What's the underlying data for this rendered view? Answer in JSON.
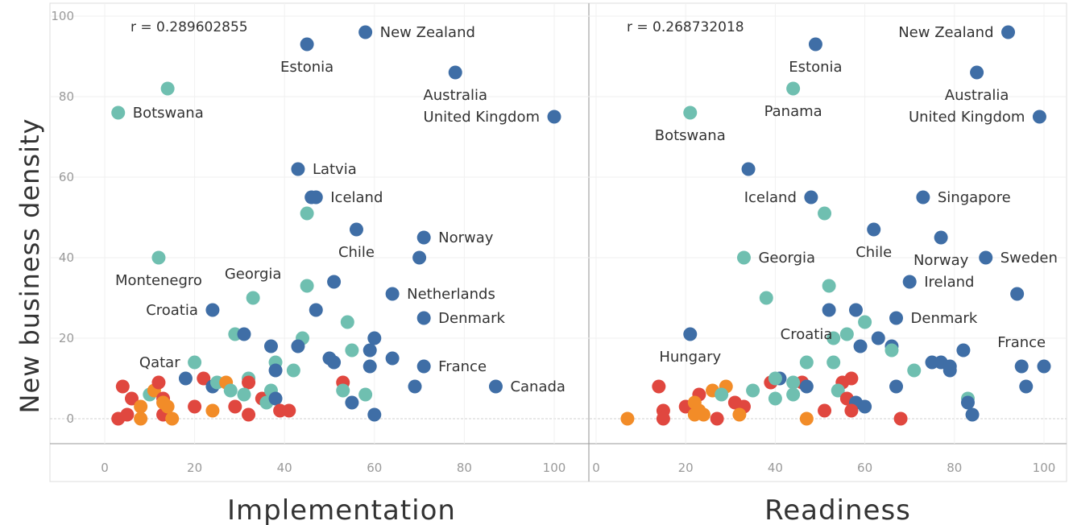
{
  "chart_data": {
    "type": "scatter",
    "ylabel": "New business density",
    "yticks": [
      0,
      20,
      40,
      60,
      80,
      100
    ],
    "ylim": [
      -7,
      102
    ],
    "xticks": [
      0,
      20,
      40,
      60,
      80,
      100
    ],
    "xlim": [
      -1,
      106
    ],
    "colors": {
      "blue": "#3f6ea6",
      "teal": "#6fbfb0",
      "red": "#e0473f",
      "orange": "#f28c28"
    },
    "panels": [
      {
        "xlabel": "Implementation",
        "annotation": "r = 0.289602855",
        "points": [
          {
            "x": 45,
            "y": 93,
            "c": "blue",
            "label": "Estonia",
            "lpos": "below"
          },
          {
            "x": 58,
            "y": 96,
            "c": "blue",
            "label": "New Zealand",
            "lpos": "right"
          },
          {
            "x": 78,
            "y": 86,
            "c": "blue",
            "label": "Australia",
            "lpos": "below"
          },
          {
            "x": 100,
            "y": 75,
            "c": "blue",
            "label": "United Kingdom",
            "lpos": "left"
          },
          {
            "x": 3,
            "y": 76,
            "c": "teal",
            "label": "Botswana",
            "lpos": "right"
          },
          {
            "x": 14,
            "y": 82,
            "c": "teal"
          },
          {
            "x": 43,
            "y": 62,
            "c": "blue",
            "label": "Latvia",
            "lpos": "right"
          },
          {
            "x": 47,
            "y": 55,
            "c": "blue",
            "label": "Iceland",
            "lpos": "right"
          },
          {
            "x": 46,
            "y": 55,
            "c": "blue"
          },
          {
            "x": 45,
            "y": 51,
            "c": "teal"
          },
          {
            "x": 56,
            "y": 47,
            "c": "blue",
            "label": "Chile",
            "lpos": "below"
          },
          {
            "x": 71,
            "y": 45,
            "c": "blue",
            "label": "Norway",
            "lpos": "right"
          },
          {
            "x": 70,
            "y": 40,
            "c": "blue"
          },
          {
            "x": 12,
            "y": 40,
            "c": "teal",
            "label": "Montenegro",
            "lpos": "below"
          },
          {
            "x": 45,
            "y": 33,
            "c": "teal"
          },
          {
            "x": 33,
            "y": 30,
            "c": "teal",
            "label": "Georgia",
            "lpos": "above"
          },
          {
            "x": 51,
            "y": 34,
            "c": "blue"
          },
          {
            "x": 47,
            "y": 27,
            "c": "blue"
          },
          {
            "x": 64,
            "y": 31,
            "c": "blue",
            "label": "Netherlands",
            "lpos": "right"
          },
          {
            "x": 71,
            "y": 25,
            "c": "blue",
            "label": "Denmark",
            "lpos": "right"
          },
          {
            "x": 24,
            "y": 27,
            "c": "blue",
            "label": "Croatia",
            "lpos": "left"
          },
          {
            "x": 54,
            "y": 24,
            "c": "teal"
          },
          {
            "x": 29,
            "y": 21,
            "c": "teal"
          },
          {
            "x": 31,
            "y": 21,
            "c": "blue"
          },
          {
            "x": 44,
            "y": 20,
            "c": "teal"
          },
          {
            "x": 60,
            "y": 20,
            "c": "blue"
          },
          {
            "x": 37,
            "y": 18,
            "c": "blue"
          },
          {
            "x": 43,
            "y": 18,
            "c": "blue"
          },
          {
            "x": 59,
            "y": 17,
            "c": "blue"
          },
          {
            "x": 55,
            "y": 17,
            "c": "teal"
          },
          {
            "x": 50,
            "y": 15,
            "c": "blue"
          },
          {
            "x": 51,
            "y": 14,
            "c": "blue"
          },
          {
            "x": 38,
            "y": 14,
            "c": "teal"
          },
          {
            "x": 64,
            "y": 15,
            "c": "blue"
          },
          {
            "x": 59,
            "y": 13,
            "c": "blue"
          },
          {
            "x": 71,
            "y": 13,
            "c": "blue",
            "label": "France",
            "lpos": "right"
          },
          {
            "x": 38,
            "y": 12,
            "c": "blue"
          },
          {
            "x": 42,
            "y": 12,
            "c": "teal"
          },
          {
            "x": 20,
            "y": 14,
            "c": "teal",
            "label": "Qatar",
            "lpos": "left"
          },
          {
            "x": 18,
            "y": 10,
            "c": "blue"
          },
          {
            "x": 22,
            "y": 10,
            "c": "red"
          },
          {
            "x": 24,
            "y": 8,
            "c": "blue"
          },
          {
            "x": 25,
            "y": 9,
            "c": "teal"
          },
          {
            "x": 27,
            "y": 9,
            "c": "orange"
          },
          {
            "x": 28,
            "y": 7,
            "c": "teal"
          },
          {
            "x": 32,
            "y": 10,
            "c": "teal"
          },
          {
            "x": 32,
            "y": 9,
            "c": "red"
          },
          {
            "x": 31,
            "y": 6,
            "c": "teal"
          },
          {
            "x": 35,
            "y": 5,
            "c": "red"
          },
          {
            "x": 36,
            "y": 4,
            "c": "teal"
          },
          {
            "x": 37,
            "y": 7,
            "c": "teal"
          },
          {
            "x": 38,
            "y": 5,
            "c": "blue"
          },
          {
            "x": 39,
            "y": 2,
            "c": "red"
          },
          {
            "x": 41,
            "y": 2,
            "c": "red"
          },
          {
            "x": 53,
            "y": 9,
            "c": "red"
          },
          {
            "x": 53,
            "y": 7,
            "c": "teal"
          },
          {
            "x": 55,
            "y": 4,
            "c": "blue"
          },
          {
            "x": 58,
            "y": 6,
            "c": "teal"
          },
          {
            "x": 60,
            "y": 1,
            "c": "blue"
          },
          {
            "x": 69,
            "y": 8,
            "c": "blue"
          },
          {
            "x": 87,
            "y": 8,
            "c": "blue",
            "label": "Canada",
            "lpos": "right"
          },
          {
            "x": 3,
            "y": 0,
            "c": "red"
          },
          {
            "x": 5,
            "y": 1,
            "c": "red"
          },
          {
            "x": 4,
            "y": 8,
            "c": "red"
          },
          {
            "x": 6,
            "y": 5,
            "c": "red"
          },
          {
            "x": 8,
            "y": 3,
            "c": "orange"
          },
          {
            "x": 8,
            "y": 0,
            "c": "orange"
          },
          {
            "x": 10,
            "y": 6,
            "c": "teal"
          },
          {
            "x": 11,
            "y": 7,
            "c": "orange"
          },
          {
            "x": 12,
            "y": 9,
            "c": "red"
          },
          {
            "x": 13,
            "y": 5,
            "c": "red"
          },
          {
            "x": 13,
            "y": 1,
            "c": "red"
          },
          {
            "x": 13,
            "y": 4,
            "c": "orange"
          },
          {
            "x": 14,
            "y": 3,
            "c": "orange"
          },
          {
            "x": 15,
            "y": 0,
            "c": "orange"
          },
          {
            "x": 20,
            "y": 3,
            "c": "red"
          },
          {
            "x": 24,
            "y": 2,
            "c": "orange"
          },
          {
            "x": 29,
            "y": 3,
            "c": "red"
          },
          {
            "x": 32,
            "y": 1,
            "c": "red"
          }
        ]
      },
      {
        "xlabel": "Readiness",
        "annotation": "r = 0.268732018",
        "points": [
          {
            "x": 49,
            "y": 93,
            "c": "blue",
            "label": "Estonia",
            "lpos": "below"
          },
          {
            "x": 92,
            "y": 96,
            "c": "blue",
            "label": "New Zealand",
            "lpos": "left"
          },
          {
            "x": 85,
            "y": 86,
            "c": "blue",
            "label": "Australia",
            "lpos": "below"
          },
          {
            "x": 99,
            "y": 75,
            "c": "blue",
            "label": "United Kingdom",
            "lpos": "left"
          },
          {
            "x": 21,
            "y": 76,
            "c": "teal",
            "label": "Botswana",
            "lpos": "below"
          },
          {
            "x": 44,
            "y": 82,
            "c": "teal",
            "label": "Panama",
            "lpos": "below"
          },
          {
            "x": 34,
            "y": 62,
            "c": "blue"
          },
          {
            "x": 48,
            "y": 55,
            "c": "blue",
            "label": "Iceland",
            "lpos": "left"
          },
          {
            "x": 51,
            "y": 51,
            "c": "teal"
          },
          {
            "x": 73,
            "y": 55,
            "c": "blue",
            "label": "Singapore",
            "lpos": "right"
          },
          {
            "x": 62,
            "y": 47,
            "c": "blue",
            "label": "Chile",
            "lpos": "below"
          },
          {
            "x": 77,
            "y": 45,
            "c": "blue",
            "label": "Norway",
            "lpos": "below"
          },
          {
            "x": 87,
            "y": 40,
            "c": "blue",
            "label": "Sweden",
            "lpos": "right"
          },
          {
            "x": 33,
            "y": 40,
            "c": "teal",
            "label": "Georgia",
            "lpos": "right"
          },
          {
            "x": 52,
            "y": 33,
            "c": "teal"
          },
          {
            "x": 70,
            "y": 34,
            "c": "blue",
            "label": "Ireland",
            "lpos": "right"
          },
          {
            "x": 38,
            "y": 30,
            "c": "teal"
          },
          {
            "x": 52,
            "y": 27,
            "c": "blue"
          },
          {
            "x": 58,
            "y": 27,
            "c": "blue"
          },
          {
            "x": 67,
            "y": 25,
            "c": "blue",
            "label": "Denmark",
            "lpos": "right"
          },
          {
            "x": 94,
            "y": 31,
            "c": "blue"
          },
          {
            "x": 60,
            "y": 24,
            "c": "teal"
          },
          {
            "x": 21,
            "y": 21,
            "c": "blue",
            "label": "Hungary",
            "lpos": "below"
          },
          {
            "x": 56,
            "y": 21,
            "c": "teal",
            "label": "Croatia",
            "lpos": "left"
          },
          {
            "x": 53,
            "y": 20,
            "c": "teal"
          },
          {
            "x": 63,
            "y": 20,
            "c": "blue"
          },
          {
            "x": 59,
            "y": 18,
            "c": "blue"
          },
          {
            "x": 66,
            "y": 18,
            "c": "blue"
          },
          {
            "x": 66,
            "y": 17,
            "c": "teal"
          },
          {
            "x": 82,
            "y": 17,
            "c": "blue"
          },
          {
            "x": 75,
            "y": 14,
            "c": "blue"
          },
          {
            "x": 77,
            "y": 14,
            "c": "blue"
          },
          {
            "x": 79,
            "y": 13,
            "c": "blue"
          },
          {
            "x": 79,
            "y": 12,
            "c": "blue"
          },
          {
            "x": 95,
            "y": 13,
            "c": "blue",
            "label": "France",
            "lpos": "above"
          },
          {
            "x": 100,
            "y": 13,
            "c": "blue"
          },
          {
            "x": 47,
            "y": 14,
            "c": "teal"
          },
          {
            "x": 53,
            "y": 14,
            "c": "teal"
          },
          {
            "x": 71,
            "y": 12,
            "c": "teal"
          },
          {
            "x": 57,
            "y": 10,
            "c": "red"
          },
          {
            "x": 55,
            "y": 9,
            "c": "red"
          },
          {
            "x": 46,
            "y": 9,
            "c": "red"
          },
          {
            "x": 44,
            "y": 9,
            "c": "teal"
          },
          {
            "x": 41,
            "y": 10,
            "c": "blue"
          },
          {
            "x": 39,
            "y": 9,
            "c": "red"
          },
          {
            "x": 40,
            "y": 10,
            "c": "teal"
          },
          {
            "x": 47,
            "y": 8,
            "c": "blue"
          },
          {
            "x": 67,
            "y": 8,
            "c": "blue"
          },
          {
            "x": 96,
            "y": 8,
            "c": "blue"
          },
          {
            "x": 29,
            "y": 8,
            "c": "orange"
          },
          {
            "x": 26,
            "y": 7,
            "c": "orange"
          },
          {
            "x": 28,
            "y": 6,
            "c": "teal"
          },
          {
            "x": 23,
            "y": 6,
            "c": "red"
          },
          {
            "x": 14,
            "y": 8,
            "c": "red"
          },
          {
            "x": 35,
            "y": 7,
            "c": "teal"
          },
          {
            "x": 44,
            "y": 6,
            "c": "teal"
          },
          {
            "x": 40,
            "y": 5,
            "c": "teal"
          },
          {
            "x": 54,
            "y": 7,
            "c": "teal"
          },
          {
            "x": 56,
            "y": 5,
            "c": "red"
          },
          {
            "x": 83,
            "y": 5,
            "c": "teal"
          },
          {
            "x": 83,
            "y": 4,
            "c": "blue"
          },
          {
            "x": 58,
            "y": 4,
            "c": "blue"
          },
          {
            "x": 60,
            "y": 3,
            "c": "blue"
          },
          {
            "x": 31,
            "y": 4,
            "c": "red"
          },
          {
            "x": 33,
            "y": 3,
            "c": "red"
          },
          {
            "x": 20,
            "y": 3,
            "c": "red"
          },
          {
            "x": 22,
            "y": 4,
            "c": "orange"
          },
          {
            "x": 23,
            "y": 2,
            "c": "orange"
          },
          {
            "x": 24,
            "y": 1,
            "c": "orange"
          },
          {
            "x": 22,
            "y": 1,
            "c": "orange"
          },
          {
            "x": 15,
            "y": 2,
            "c": "red"
          },
          {
            "x": 15,
            "y": 0,
            "c": "red"
          },
          {
            "x": 27,
            "y": 0,
            "c": "red"
          },
          {
            "x": 32,
            "y": 1,
            "c": "orange"
          },
          {
            "x": 7,
            "y": 0,
            "c": "orange"
          },
          {
            "x": 47,
            "y": 0,
            "c": "orange"
          },
          {
            "x": 51,
            "y": 2,
            "c": "red"
          },
          {
            "x": 57,
            "y": 2,
            "c": "red"
          },
          {
            "x": 68,
            "y": 0,
            "c": "red"
          },
          {
            "x": 84,
            "y": 1,
            "c": "blue"
          }
        ]
      }
    ]
  }
}
